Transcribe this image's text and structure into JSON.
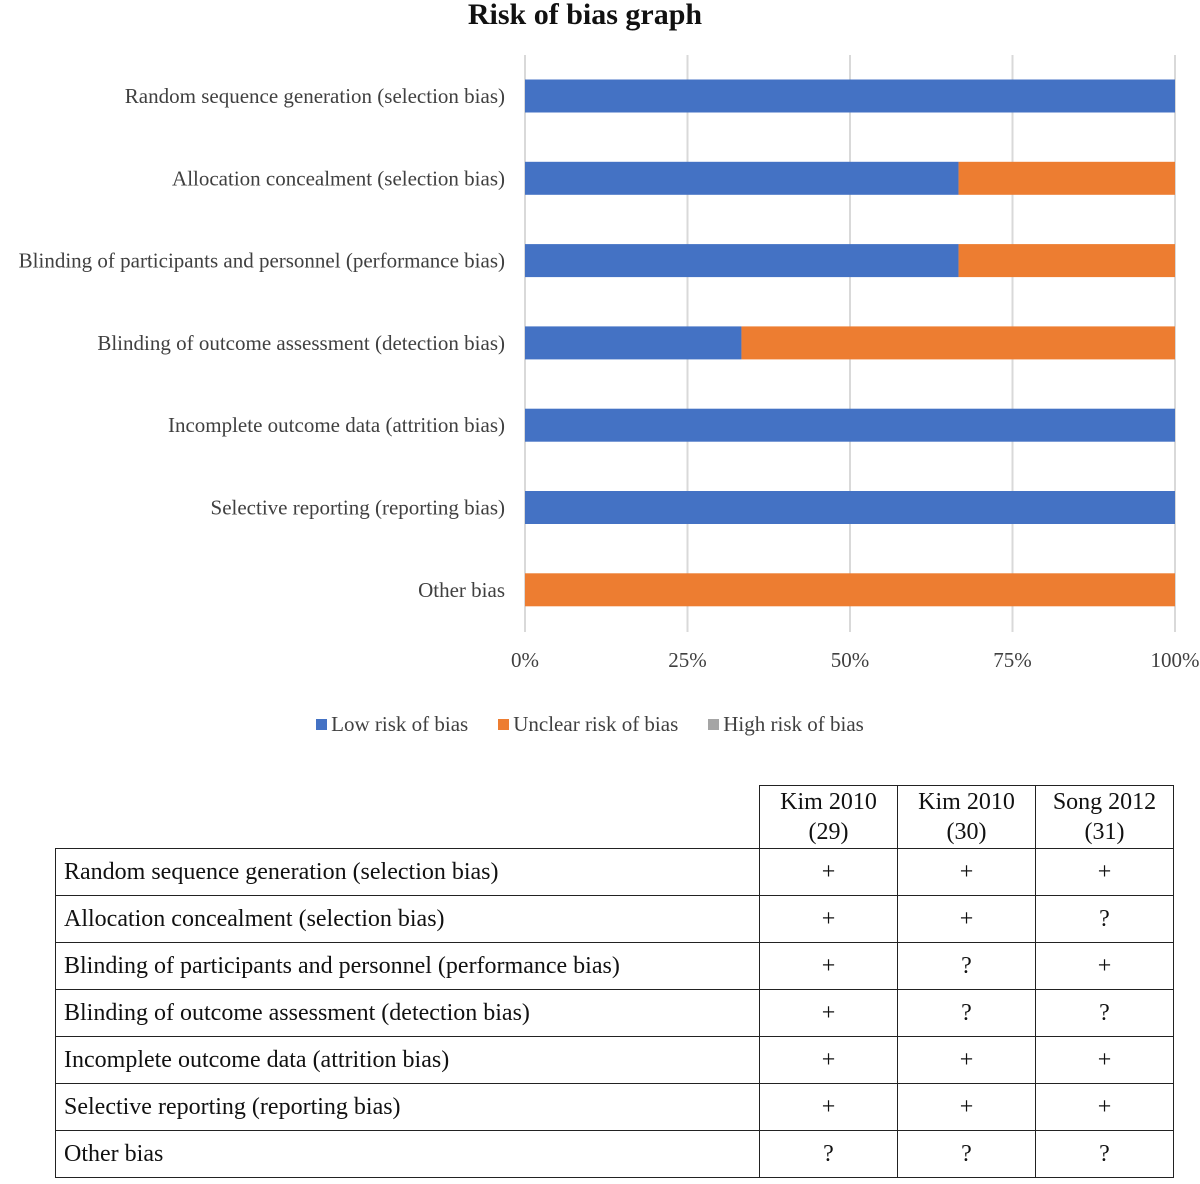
{
  "chart_data": {
    "type": "bar",
    "orientation": "horizontal",
    "stacked": true,
    "title": "Risk of bias graph",
    "categories": [
      "Random sequence generation (selection bias)",
      "Allocation concealment (selection bias)",
      "Blinding of participants and personnel (performance bias)",
      "Blinding of outcome assessment (detection bias)",
      "Incomplete outcome data (attrition bias)",
      "Selective reporting (reporting bias)",
      "Other bias"
    ],
    "series": [
      {
        "name": "Low risk of bias",
        "color": "#4472C4",
        "values": [
          100,
          66.7,
          66.7,
          33.3,
          100,
          100,
          0
        ]
      },
      {
        "name": "Unclear risk of bias",
        "color": "#ED7D31",
        "values": [
          0,
          33.3,
          33.3,
          66.7,
          0,
          0,
          100
        ]
      },
      {
        "name": "High risk of bias",
        "color": "#A5A5A5",
        "values": [
          0,
          0,
          0,
          0,
          0,
          0,
          0
        ]
      }
    ],
    "xlim": [
      0,
      100
    ],
    "xticks": [
      "0%",
      "25%",
      "50%",
      "75%",
      "100%"
    ],
    "grid": true,
    "legend_position": "bottom"
  },
  "table": {
    "studies": [
      {
        "name": "Kim 2010",
        "ref": "(29)"
      },
      {
        "name": "Kim 2010",
        "ref": "(30)"
      },
      {
        "name": "Song 2012",
        "ref": "(31)"
      }
    ],
    "rows": [
      {
        "domain": "Random sequence generation (selection bias)",
        "judgements": [
          "+",
          "+",
          "+"
        ]
      },
      {
        "domain": "Allocation concealment (selection bias)",
        "judgements": [
          "+",
          "+",
          "?"
        ]
      },
      {
        "domain": "Blinding of participants and personnel (performance bias)",
        "judgements": [
          "+",
          "?",
          "+"
        ]
      },
      {
        "domain": "Blinding of outcome assessment (detection bias)",
        "judgements": [
          "+",
          "?",
          "?"
        ]
      },
      {
        "domain": "Incomplete outcome data (attrition bias)",
        "judgements": [
          "+",
          "+",
          "+"
        ]
      },
      {
        "domain": "Selective reporting (reporting bias)",
        "judgements": [
          "+",
          "+",
          "+"
        ]
      },
      {
        "domain": "Other bias",
        "judgements": [
          "?",
          "?",
          "?"
        ]
      }
    ]
  }
}
